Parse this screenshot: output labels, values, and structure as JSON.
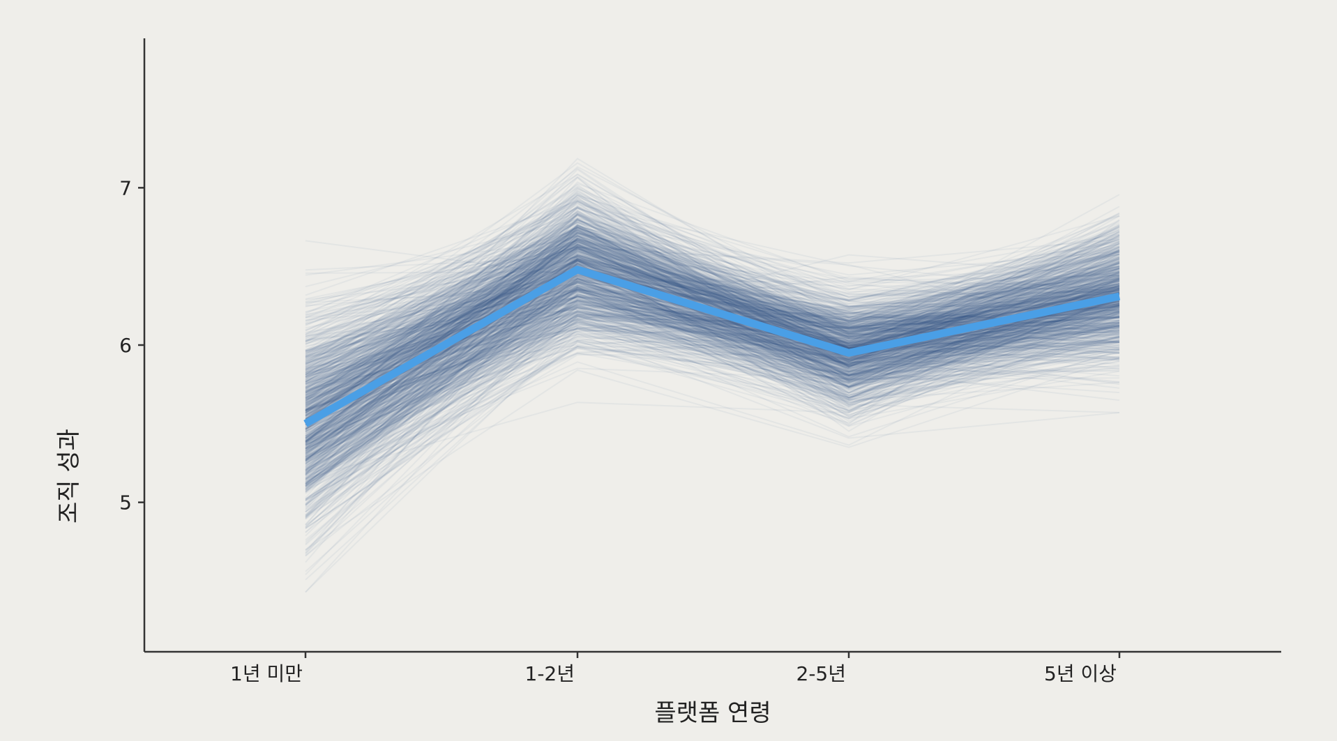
{
  "chart_data": {
    "type": "line",
    "title": "",
    "xlabel": "플랫폼 연령",
    "ylabel": "조직 성과",
    "categories": [
      "1년 미만",
      "1-2년",
      "2-5년",
      "5년 이상"
    ],
    "ylim": [
      4.05,
      7.95
    ],
    "yticks": [
      5,
      6,
      7
    ],
    "grid": false,
    "legend": "none",
    "series": [
      {
        "values": [
          5.5,
          6.48,
          5.95,
          6.31
        ],
        "color": "#4a9fe6"
      }
    ],
    "posterior_draws": {
      "description_of_spread": "many semi-transparent lines",
      "center": [
        5.5,
        6.48,
        5.95,
        6.31
      ],
      "sd": [
        0.34,
        0.24,
        0.19,
        0.22
      ],
      "color": "#2d5a8c"
    }
  },
  "colors": {
    "background": "#efeeea",
    "axis": "#333333",
    "mean_line": "#4a9fe6",
    "draws": "#2d5a8c"
  }
}
